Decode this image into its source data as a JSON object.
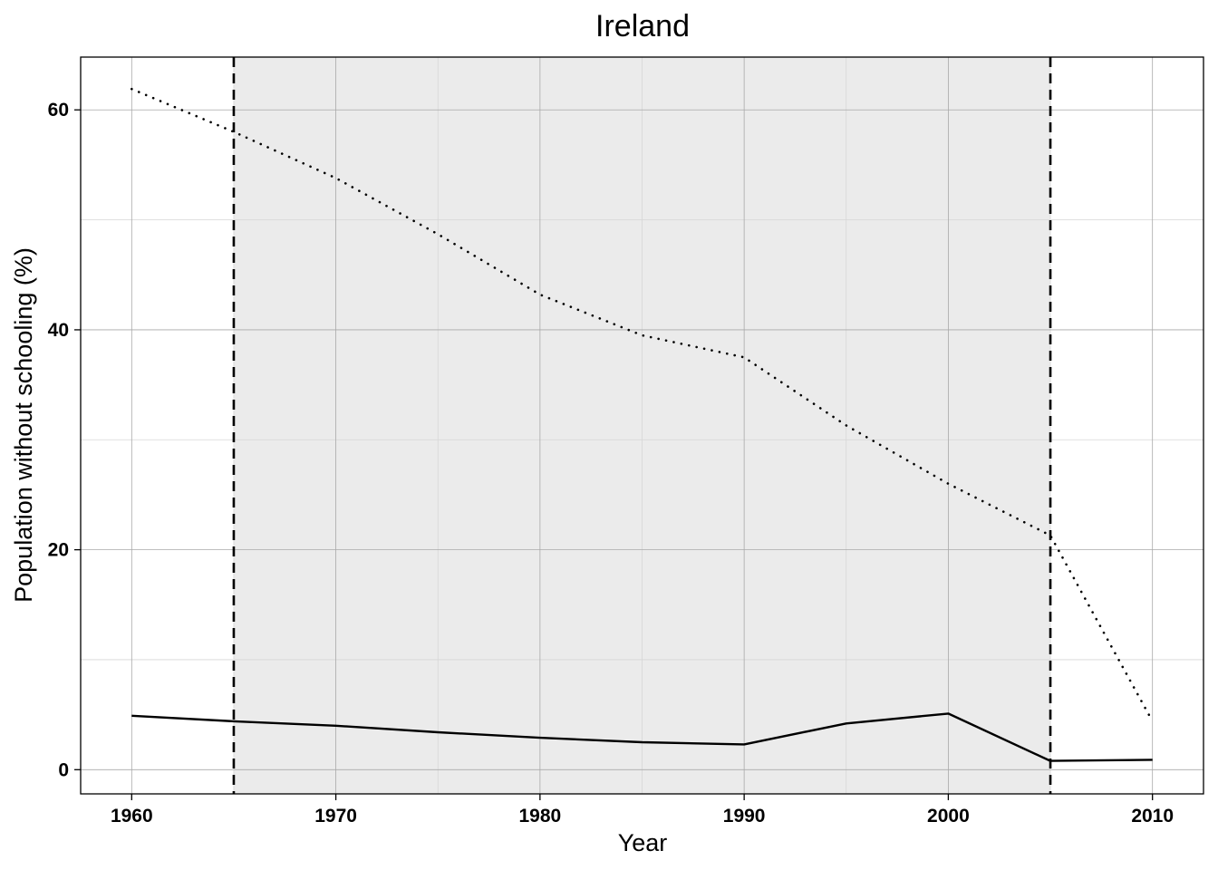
{
  "chart_data": {
    "type": "line",
    "title": "Ireland",
    "xlabel": "Year",
    "ylabel": "Population without schooling (%)",
    "xlim": [
      1957.5,
      2012.5
    ],
    "ylim": [
      -2.2,
      64.8
    ],
    "x_ticks": [
      1960,
      1970,
      1980,
      1990,
      2000,
      2010
    ],
    "y_ticks": [
      0,
      20,
      40,
      60
    ],
    "grid": true,
    "shaded_region": {
      "x_start": 1965,
      "x_end": 2005,
      "color": "#ebebeb"
    },
    "vertical_lines": [
      {
        "x": 1965,
        "style": "dashed"
      },
      {
        "x": 2005,
        "style": "dashed"
      }
    ],
    "x": [
      1960,
      1965,
      1970,
      1975,
      1980,
      1985,
      1990,
      1995,
      2000,
      2005,
      2010
    ],
    "series": [
      {
        "style": "dotted",
        "color": "#000000",
        "values": [
          61.9,
          58.0,
          53.8,
          48.7,
          43.2,
          39.5,
          37.5,
          31.3,
          26.0,
          21.3,
          4.4
        ]
      },
      {
        "style": "solid",
        "color": "#000000",
        "values": [
          4.9,
          4.4,
          4.0,
          3.4,
          2.9,
          2.5,
          2.3,
          4.2,
          5.1,
          0.8,
          0.9
        ]
      }
    ]
  }
}
